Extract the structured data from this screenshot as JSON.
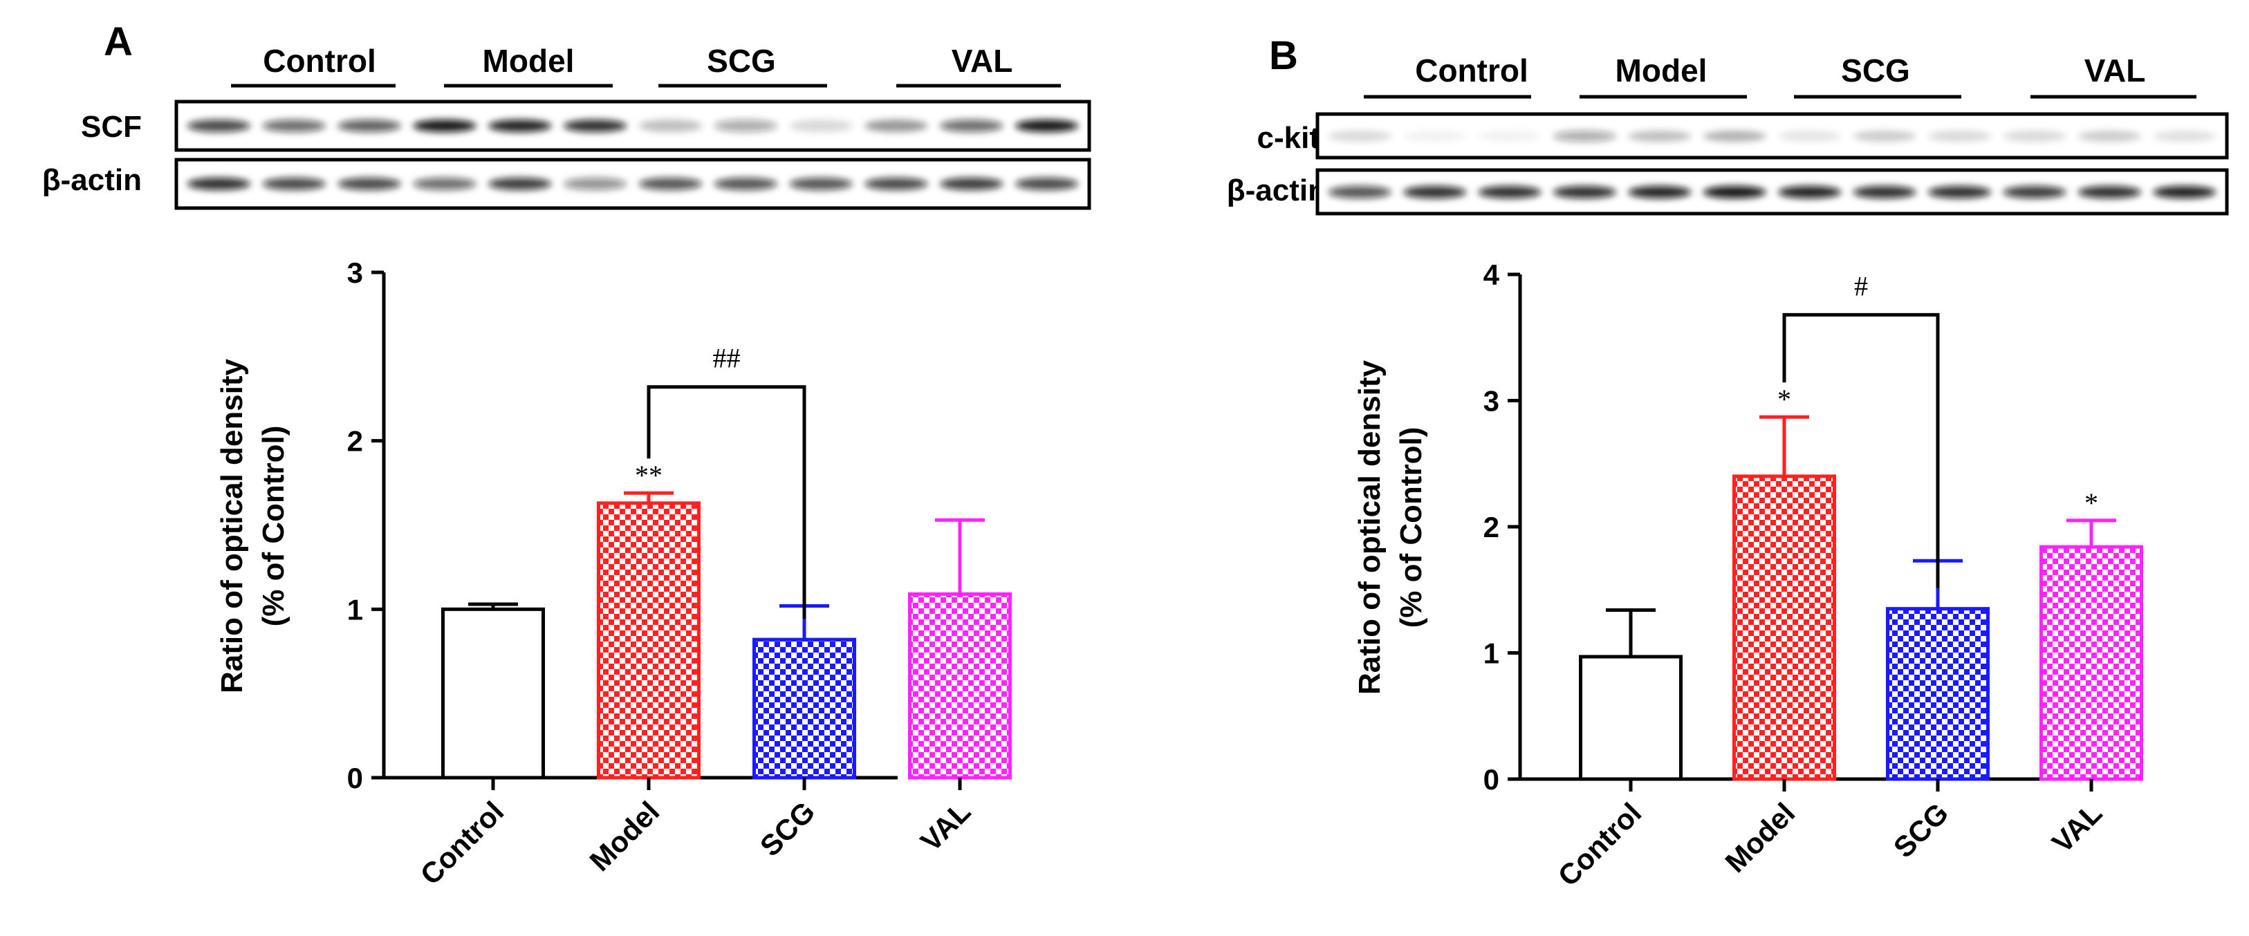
{
  "colors": {
    "control": "#000000",
    "model": "#ff2020",
    "scg": "#1a1aff",
    "val": "#ff22ff",
    "band": "#101010"
  },
  "chart_data": [
    {
      "type": "bar",
      "panel_label": "A",
      "blot_groups": [
        "Control",
        "Model",
        "SCG",
        "VAL"
      ],
      "blot_rows": [
        "SCF",
        "β-actin"
      ],
      "categories": [
        "Control",
        "Model",
        "SCG",
        "VAL"
      ],
      "values": [
        1.0,
        1.63,
        0.82,
        1.09
      ],
      "errors": [
        0.03,
        0.06,
        0.2,
        0.44
      ],
      "annotations": [
        "",
        "**",
        "",
        ""
      ],
      "comparison": {
        "from": 1,
        "to": 2,
        "label": "##",
        "y": 2.32
      },
      "ylabel_line1": "Ratio of optical density",
      "ylabel_line2": "(% of Control)",
      "ylim": [
        0,
        3
      ],
      "yticks": [
        "0",
        "1",
        "2",
        "3"
      ],
      "band_intensity": [
        [
          0.75,
          0.6,
          0.65,
          0.95,
          0.9,
          0.85,
          0.25,
          0.35,
          0.15,
          0.4,
          0.6,
          0.95
        ],
        [
          0.85,
          0.75,
          0.75,
          0.6,
          0.8,
          0.45,
          0.7,
          0.7,
          0.7,
          0.75,
          0.8,
          0.75
        ]
      ]
    },
    {
      "type": "bar",
      "panel_label": "B",
      "blot_groups": [
        "Control",
        "Model",
        "SCG",
        "VAL"
      ],
      "blot_rows": [
        "c-kit",
        "β-actin"
      ],
      "categories": [
        "Control",
        "Model",
        "SCG",
        "VAL"
      ],
      "values": [
        0.97,
        2.4,
        1.35,
        1.84
      ],
      "errors": [
        0.37,
        0.47,
        0.38,
        0.21
      ],
      "annotations": [
        "",
        "*",
        "",
        "*"
      ],
      "comparison": {
        "from": 1,
        "to": 2,
        "label": "#",
        "y": 3.68
      },
      "ylabel_line1": "Ratio of optical density",
      "ylabel_line2": "(% of Control)",
      "ylim": [
        0,
        4
      ],
      "yticks": [
        "0",
        "1",
        "2",
        "3",
        "4"
      ],
      "band_intensity": [
        [
          0.15,
          0.05,
          0.05,
          0.35,
          0.25,
          0.3,
          0.1,
          0.2,
          0.15,
          0.15,
          0.2,
          0.12
        ],
        [
          0.7,
          0.85,
          0.85,
          0.85,
          0.9,
          0.95,
          0.9,
          0.85,
          0.85,
          0.8,
          0.85,
          0.9
        ]
      ]
    }
  ]
}
